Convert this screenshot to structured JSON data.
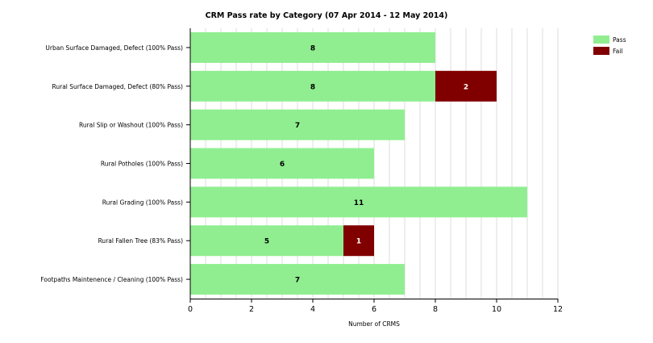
{
  "chart_data": {
    "type": "bar",
    "orientation": "horizontal",
    "stacked": true,
    "title": "CRM Pass rate by Category (07 Apr 2014 - 12 May 2014)",
    "xlabel": "Number of CRMS",
    "ylabel": "",
    "xlim": [
      0,
      12
    ],
    "xticks": [
      0,
      2,
      4,
      6,
      8,
      10,
      12
    ],
    "grid": "vertical",
    "legend_position": "top-right",
    "categories": [
      "Urban Surface Damaged, Defect (100% Pass)",
      "Rural Surface Damaged, Defect (80% Pass)",
      "Rural Slip or Washout (100% Pass)",
      "Rural Potholes (100% Pass)",
      "Rural Grading (100% Pass)",
      "Rural Fallen Tree (83% Pass)",
      "Footpaths Maintenence / Cleaning (100% Pass)"
    ],
    "series": [
      {
        "name": "Pass",
        "color": "#90ee90",
        "label_color": "#000000",
        "values": [
          8,
          8,
          7,
          6,
          11,
          5,
          7
        ]
      },
      {
        "name": "Fail",
        "color": "#800000",
        "label_color": "#ffffff",
        "values": [
          0,
          2,
          0,
          0,
          0,
          1,
          0
        ]
      }
    ]
  }
}
